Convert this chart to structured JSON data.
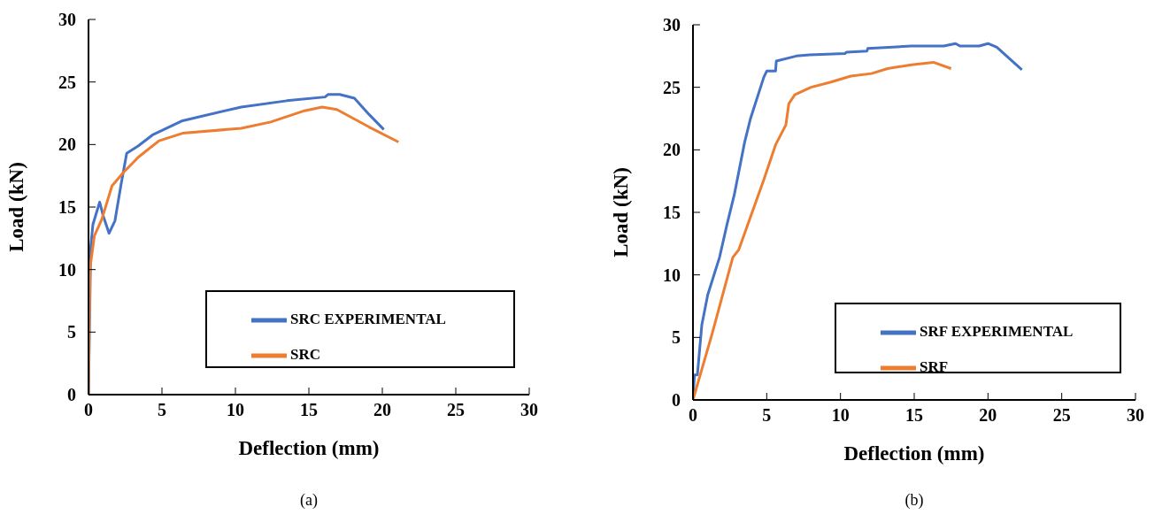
{
  "chart_data": [
    {
      "type": "line",
      "xlabel": "Deflection (mm)",
      "ylabel": "Load (kN)",
      "annotations": [
        "(a)"
      ],
      "xlim": [
        0,
        30
      ],
      "xticks": [
        0,
        5,
        10,
        15,
        20,
        25,
        30
      ],
      "ylim": [
        0,
        30
      ],
      "yticks": [
        0,
        5,
        10,
        15,
        20,
        25,
        30
      ],
      "legend": "bottom right",
      "series": [
        {
          "name": "SRC EXPERIMENTAL",
          "color": "#4472c4",
          "x": [
            0,
            0.15,
            0.3,
            0.76,
            1.0,
            1.4,
            1.8,
            2.2,
            2.6,
            3.4,
            4.4,
            6.4,
            10.4,
            13.5,
            16.1,
            16.3,
            17.1,
            18.1,
            19.1,
            20.1
          ],
          "values": [
            0,
            11.8,
            13.6,
            15.4,
            14.3,
            12.9,
            13.9,
            16.7,
            19.3,
            19.9,
            20.8,
            21.9,
            23.0,
            23.5,
            23.8,
            24.0,
            24.0,
            23.7,
            22.4,
            21.2
          ]
        },
        {
          "name": "SRC",
          "color": "#ed7d31",
          "x": [
            0,
            0.1,
            0.4,
            0.9,
            1.6,
            2.4,
            3.4,
            4.8,
            6.4,
            10.4,
            12.4,
            14.7,
            15.9,
            16.9,
            19.1,
            21.1
          ],
          "values": [
            0,
            10.1,
            12.7,
            14.0,
            16.7,
            17.8,
            19.0,
            20.3,
            20.9,
            21.3,
            21.8,
            22.7,
            23.0,
            22.8,
            21.4,
            20.2
          ]
        }
      ]
    },
    {
      "type": "line",
      "xlabel": "Deflection (mm)",
      "ylabel": "Load (kN)",
      "annotations": [
        "(b)"
      ],
      "xlim": [
        0,
        30
      ],
      "xticks": [
        0,
        5,
        10,
        15,
        20,
        25,
        30
      ],
      "ylim": [
        0,
        30
      ],
      "yticks": [
        0,
        5,
        10,
        15,
        20,
        25,
        30
      ],
      "legend": "bottom right",
      "series": [
        {
          "name": "SRF EXPERIMENTAL",
          "color": "#4472c4",
          "x": [
            0,
            0.1,
            0.3,
            0.6,
            1.0,
            1.8,
            2.3,
            2.8,
            3.5,
            3.9,
            4.8,
            5.0,
            5.6,
            5.65,
            7.0,
            7.9,
            10.3,
            10.4,
            11.8,
            11.85,
            14.8,
            17.0,
            17.8,
            18.1,
            19.4,
            20.0,
            20.6,
            22.3
          ],
          "values": [
            0,
            2.0,
            2.0,
            6.0,
            8.4,
            11.4,
            14.0,
            16.4,
            20.6,
            22.5,
            25.8,
            26.3,
            26.3,
            27.1,
            27.5,
            27.6,
            27.7,
            27.8,
            27.9,
            28.1,
            28.3,
            28.3,
            28.5,
            28.3,
            28.3,
            28.5,
            28.2,
            26.4
          ]
        },
        {
          "name": "SRF",
          "color": "#ed7d31",
          "x": [
            0,
            1.3,
            2.7,
            3.1,
            4.8,
            5.6,
            6.3,
            6.5,
            6.9,
            8.0,
            9.3,
            10.7,
            12.1,
            13.2,
            14.8,
            16.3,
            17.5
          ],
          "values": [
            0,
            5.3,
            11.4,
            12.0,
            17.6,
            20.4,
            22.0,
            23.7,
            24.4,
            25.0,
            25.4,
            25.9,
            26.1,
            26.5,
            26.8,
            27.0,
            26.5
          ]
        }
      ]
    }
  ]
}
